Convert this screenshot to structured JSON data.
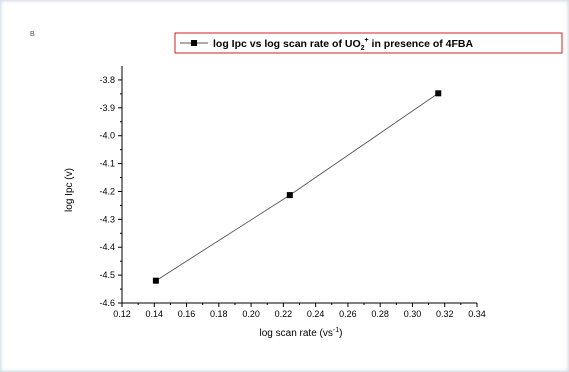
{
  "chart_data": {
    "type": "line",
    "corner_mark": "B",
    "legend": {
      "prefix": "log Ipc vs log scan rate of  UO",
      "sub": "2",
      "sup": "+",
      "suffix": " in presence of 4FBA",
      "placement": "top-right"
    },
    "xlabel": {
      "main": "log scan rate (vs",
      "sup": "-1",
      "end": ")"
    },
    "ylabel": "log Ipc (v)",
    "xlim": [
      0.12,
      0.34
    ],
    "ylim": [
      -4.6,
      -3.75
    ],
    "xticks": [
      "0.12",
      "0.14",
      "0.16",
      "0.18",
      "0.20",
      "0.22",
      "0.24",
      "0.26",
      "0.28",
      "0.30",
      "0.32",
      "0.34"
    ],
    "yticks": [
      "-3.8",
      "-3.9",
      "-4.0",
      "-4.1",
      "-4.2",
      "-4.3",
      "-4.4",
      "-4.5",
      "-4.6"
    ],
    "grid": false,
    "series": [
      {
        "marker": "square",
        "color": "#000000",
        "line_color": "#555555",
        "x": [
          0.141,
          0.224,
          0.316
        ],
        "y": [
          -4.52,
          -4.213,
          -3.848
        ]
      }
    ],
    "legend_border_color": "#cc2222"
  }
}
